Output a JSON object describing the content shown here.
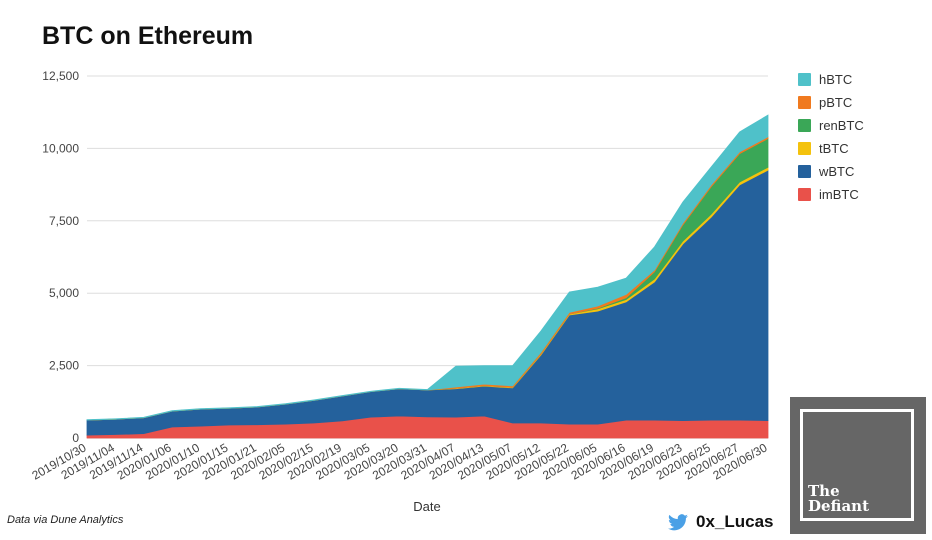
{
  "chart_data": {
    "type": "area",
    "stacked": true,
    "title": "BTC on Ethereum",
    "xlabel": "Date",
    "ylabel": "",
    "ylim": [
      0,
      12500
    ],
    "yticks": [
      "0",
      "2,500",
      "5,000",
      "7,500",
      "10,000",
      "12,500"
    ],
    "ytick_values": [
      0,
      2500,
      5000,
      7500,
      10000,
      12500
    ],
    "grid": true,
    "legend_position": "right",
    "categories": [
      "2019/10/30",
      "2019/11/04",
      "2019/11/14",
      "2020/01/06",
      "2020/01/10",
      "2020/01/15",
      "2020/01/21",
      "2020/02/05",
      "2020/02/15",
      "2020/02/19",
      "2020/03/05",
      "2020/03/20",
      "2020/03/31",
      "2020/04/07",
      "2020/04/13",
      "2020/05/07",
      "2020/05/12",
      "2020/05/22",
      "2020/06/05",
      "2020/06/16",
      "2020/06/19",
      "2020/06/23",
      "2020/06/25",
      "2020/06/27",
      "2020/06/30"
    ],
    "series": [
      {
        "name": "imBTC",
        "color": "#e9514a",
        "values": [
          100,
          120,
          150,
          380,
          410,
          450,
          460,
          480,
          520,
          590,
          720,
          760,
          730,
          720,
          760,
          520,
          520,
          480,
          480,
          620,
          620,
          600,
          620,
          620,
          600
        ]
      },
      {
        "name": "wBTC",
        "color": "#24619c",
        "values": [
          520,
          530,
          550,
          550,
          590,
          580,
          610,
          690,
          780,
          860,
          880,
          940,
          930,
          980,
          1030,
          1210,
          2350,
          3770,
          3900,
          4080,
          4770,
          6100,
          7010,
          8120,
          8650
        ]
      },
      {
        "name": "tBTC",
        "color": "#f4c20d",
        "values": [
          0,
          0,
          0,
          0,
          0,
          0,
          0,
          0,
          0,
          0,
          0,
          0,
          0,
          20,
          20,
          20,
          30,
          30,
          80,
          80,
          100,
          100,
          100,
          100,
          100
        ]
      },
      {
        "name": "renBTC",
        "color": "#3aa757",
        "values": [
          0,
          0,
          0,
          0,
          0,
          0,
          0,
          0,
          0,
          0,
          0,
          0,
          0,
          0,
          0,
          0,
          0,
          0,
          20,
          60,
          250,
          560,
          950,
          980,
          990
        ]
      },
      {
        "name": "pBTC",
        "color": "#f07a1f",
        "values": [
          0,
          0,
          0,
          0,
          0,
          0,
          0,
          0,
          0,
          0,
          0,
          0,
          0,
          40,
          50,
          50,
          60,
          60,
          80,
          120,
          60,
          60,
          60,
          60,
          60
        ]
      },
      {
        "name": "hBTC",
        "color": "#4fc1c9",
        "values": [
          15,
          15,
          15,
          15,
          15,
          15,
          15,
          15,
          15,
          15,
          15,
          15,
          15,
          720,
          640,
          700,
          740,
          700,
          650,
          560,
          800,
          730,
          620,
          690,
          750
        ]
      }
    ],
    "legend_order": [
      "hBTC",
      "pBTC",
      "renBTC",
      "tBTC",
      "wBTC",
      "imBTC"
    ]
  },
  "footer": {
    "source": "Data via Dune Analytics",
    "handle": "0x_Lucas",
    "twitter_icon": "twitter-bird-icon"
  },
  "logo": {
    "line1": "The",
    "line2": "Defiant"
  }
}
